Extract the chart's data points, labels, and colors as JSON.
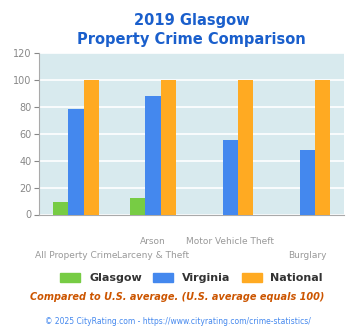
{
  "title_line1": "2019 Glasgow",
  "title_line2": "Property Crime Comparison",
  "title_color": "#1a5fcc",
  "cat_labels_top": [
    "",
    "Arson",
    "Motor Vehicle Theft",
    ""
  ],
  "cat_labels_bot": [
    "All Property Crime",
    "Larceny & Theft",
    "",
    "Burglary"
  ],
  "glasgow": [
    9,
    12,
    0,
    0
  ],
  "virginia": [
    78,
    88,
    55,
    48
  ],
  "national": [
    100,
    100,
    100,
    100
  ],
  "glasgow_color": "#77cc44",
  "virginia_color": "#4488ee",
  "national_color": "#ffaa22",
  "ylim": [
    0,
    120
  ],
  "yticks": [
    0,
    20,
    40,
    60,
    80,
    100,
    120
  ],
  "plot_bg_color": "#d8eaee",
  "grid_color": "#ffffff",
  "footnote1": "Compared to U.S. average. (U.S. average equals 100)",
  "footnote2": "© 2025 CityRating.com - https://www.cityrating.com/crime-statistics/",
  "footnote1_color": "#cc5500",
  "footnote2_color": "#4488ee",
  "legend_labels": [
    "Glasgow",
    "Virginia",
    "National"
  ],
  "bar_width": 0.2
}
